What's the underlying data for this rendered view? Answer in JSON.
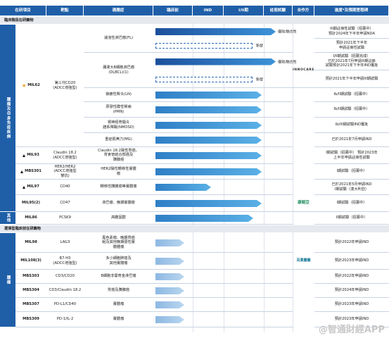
{
  "header": [
    "在研項目",
    "靶點",
    "適應症",
    "臨床前",
    "IND",
    "I/II期",
    "註冊試驗",
    "合作方",
    "進度*及預期里程碑"
  ],
  "sections": [
    {
      "title": "臨床階段在研藥物",
      "groups": [
        {
          "label": "腫瘤及自身免疫疾病",
          "drugs": [
            {
              "name": "MIL62",
              "target": "第三代CD20\n(ADCC增強型)",
              "indications": [
                {
                  "name": "濾泡性淋巴瘤(FL)",
                  "bar_label": "優效/融合性",
                  "progress": "III期註冊性試驗（招募中）\n預計2024年下半年申請NDA",
                  "new_line": {
                    "bar_label": "新發",
                    "progress": "預計2021年下半年\n申請註冊性試驗"
                  }
                },
                {
                  "name": "瀰漫大B細胞淋巴瘤\n(DLBCL)(1)",
                  "bar_label": "優效/融合性",
                  "partner": "INNOCARE",
                  "progress": "I/II期試驗（招募完成）\n已於2021年7月申請III期註冊\n試驗預計2021年下半年IND獲批",
                  "new_line": {
                    "bar_label": "新發",
                    "progress": "預計2021年下半年申請III期試驗"
                  }
                },
                {
                  "name": "狼瘡性腎炎(LN)",
                  "progress": "Ib/II期試驗（招募中）"
                },
                {
                  "name": "原發性膜性腎病\n(PMN)",
                  "progress": "Ib/II期試驗（招募中）"
                },
                {
                  "name": "視神經脊髓炎\n譜系障礙(NMOSD)",
                  "progress": "Ib/III期試驗IND獲批"
                },
                {
                  "name": "重症肌無力(MG)",
                  "progress": "已於2021年7月申請IND"
                }
              ]
            },
            {
              "name": "MIL93",
              "target": "Claudin 18.2\n(ADCC增強型)",
              "indications": [
                {
                  "name": "Claudin 18.2陽性胃癌、\n胃食管結合部癌及\n胰腺癌",
                  "progress": "I期試驗（招募中） 預計2023年\n上半年申請註冊性試驗"
                }
              ]
            },
            {
              "name": "MBS301",
              "target": "HER2/HER2\n(ADCC增強型\n雙抗)",
              "indications": [
                {
                  "name": "HER2陽性轉移性實體\n瘤",
                  "progress": "I期試驗（招募中）"
                }
              ]
            },
            {
              "name": "MIL97",
              "target": "CD40",
              "indications": [
                {
                  "name": "轉移性胰腺癌等實體瘤",
                  "progress": "已於2021年5月申請IND\nI期試驗（澳大利亞）"
                }
              ]
            },
            {
              "name": "MIL95(2)",
              "target": "CD47",
              "indications": [
                {
                  "name": "淋巴瘤、晚期實體瘤",
                  "partner": "康諾亞",
                  "progress": "I期試驗（招募中）"
                }
              ]
            }
          ]
        },
        {
          "label": "其他",
          "drugs": [
            {
              "name": "MIL86",
              "target": "PCSK9",
              "indications": [
                {
                  "name": "高膽固醇",
                  "progress": "II期試驗（招募中）"
                }
              ]
            }
          ]
        }
      ]
    },
    {
      "title": "選擇型臨床前在研藥物",
      "groups": [
        {
          "label": "腫瘤",
          "drugs": [
            {
              "name": "MIL98",
              "target": "LAG3",
              "indications": [
                {
                  "name": "黑色素瘤、晚期胃癌\n組及其他晚期惡性實\n體腫瘤",
                  "progress": "預計2022年申請IND"
                }
              ]
            },
            {
              "name": "MIL108(3)",
              "target": "B7-H3\n(ADCC增強型)",
              "indications": [
                {
                  "name": "多小細胞肺癌及\n其他實體瘤",
                  "partner": "百奧賽圖",
                  "progress": "預計2023年申請IND"
                }
              ]
            },
            {
              "name": "MBS303",
              "target": "CD3/CD20",
              "indications": [
                {
                  "name": "B細胞非霍奇金淋巴瘤",
                  "progress": "預計2022年申請IND"
                }
              ]
            },
            {
              "name": "MBS304",
              "target": "CD3/Claudin 18.2",
              "indications": [
                {
                  "name": "胃癌及胰腺癌",
                  "progress": "預計2024年申請IND"
                }
              ]
            },
            {
              "name": "MBS307",
              "target": "PD-L1/CD40",
              "indications": [
                {
                  "name": "實體瘤",
                  "progress": "預計2023年申請IND"
                }
              ]
            },
            {
              "name": "MBS309",
              "target": "PD-1/IL-2",
              "indications": [
                {
                  "name": "實體瘤",
                  "progress": "預計2023年申請IND"
                }
              ]
            }
          ]
        }
      ]
    }
  ],
  "watermark": "@智通財經APP"
}
